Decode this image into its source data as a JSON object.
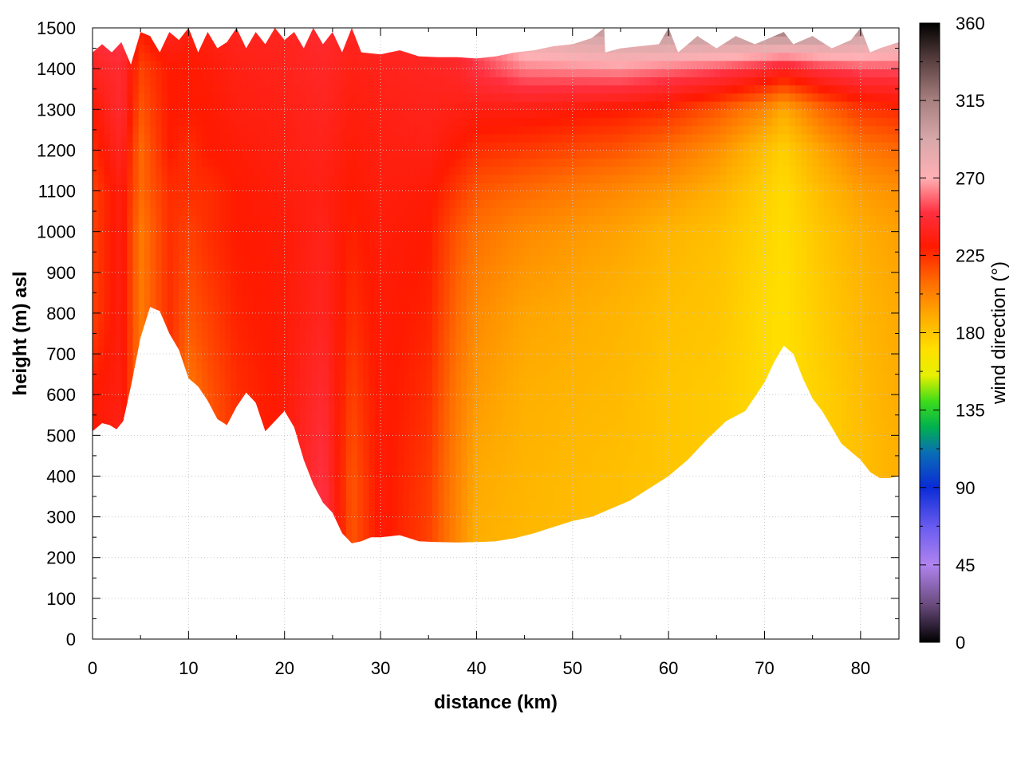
{
  "chart_data": {
    "type": "heatmap",
    "title": "",
    "xlabel": "distance (km)",
    "ylabel": "height (m) asl",
    "colorbar_label": "wind direction (°)",
    "xlim": [
      0,
      84
    ],
    "ylim": [
      0,
      1500
    ],
    "xticks": [
      0,
      10,
      20,
      30,
      40,
      50,
      60,
      70,
      80
    ],
    "yticks": [
      0,
      100,
      200,
      300,
      400,
      500,
      600,
      700,
      800,
      900,
      1000,
      1100,
      1200,
      1300,
      1400,
      1500
    ],
    "colorbar_range": [
      0,
      360
    ],
    "colorbar_ticks": [
      0,
      45,
      90,
      135,
      180,
      225,
      270,
      315,
      360
    ],
    "grid": true,
    "colormap": [
      {
        "value": 0,
        "color": "#000000"
      },
      {
        "value": 22,
        "color": "#6a4b7d"
      },
      {
        "value": 45,
        "color": "#b083ef"
      },
      {
        "value": 67,
        "color": "#6a5cf0"
      },
      {
        "value": 90,
        "color": "#0a2bd6"
      },
      {
        "value": 110,
        "color": "#0a6db6"
      },
      {
        "value": 125,
        "color": "#00b050"
      },
      {
        "value": 140,
        "color": "#3ddc1a"
      },
      {
        "value": 155,
        "color": "#e6f000"
      },
      {
        "value": 170,
        "color": "#ffe000"
      },
      {
        "value": 190,
        "color": "#ffaa00"
      },
      {
        "value": 210,
        "color": "#ff6a00"
      },
      {
        "value": 230,
        "color": "#ff1a00"
      },
      {
        "value": 250,
        "color": "#ff3040"
      },
      {
        "value": 270,
        "color": "#ffb0b4"
      },
      {
        "value": 292,
        "color": "#d8a8aa"
      },
      {
        "value": 315,
        "color": "#a88080"
      },
      {
        "value": 338,
        "color": "#5a4040"
      },
      {
        "value": 360,
        "color": "#000000"
      }
    ],
    "terrain": {
      "x": [
        0,
        1,
        1.8,
        2.5,
        3.2,
        4,
        5,
        6,
        7,
        8,
        9,
        10,
        11,
        12,
        13,
        14,
        15,
        16,
        17,
        18,
        19,
        20,
        21,
        22,
        23,
        24,
        25,
        26,
        27,
        28,
        29,
        30,
        32,
        34,
        36,
        38,
        40,
        42,
        44,
        46,
        48,
        50,
        52,
        54,
        56,
        58,
        60,
        62,
        64,
        66,
        68,
        70,
        71,
        72,
        73,
        74,
        75,
        76,
        77,
        78,
        79,
        80,
        81,
        82,
        83,
        84
      ],
      "height": [
        510,
        530,
        525,
        515,
        535,
        620,
        740,
        815,
        805,
        750,
        710,
        640,
        620,
        585,
        540,
        525,
        570,
        605,
        580,
        510,
        535,
        560,
        520,
        440,
        380,
        335,
        310,
        260,
        235,
        240,
        250,
        250,
        255,
        240,
        238,
        237,
        238,
        240,
        248,
        260,
        275,
        290,
        300,
        320,
        340,
        370,
        400,
        440,
        490,
        535,
        560,
        630,
        680,
        720,
        700,
        640,
        590,
        560,
        520,
        480,
        460,
        440,
        410,
        395,
        395,
        400
      ]
    },
    "field_columns": [
      {
        "x": 0,
        "dir": [
          230,
          230,
          230,
          230,
          220,
          220,
          220,
          225,
          230,
          240,
          250
        ]
      },
      {
        "x": 3,
        "dir": [
          250,
          250,
          240,
          235,
          235,
          235,
          235,
          240,
          245,
          245,
          255
        ]
      },
      {
        "x": 5,
        "dir": [
          210,
          210,
          210,
          205,
          205,
          205,
          210,
          210,
          215,
          220,
          230
        ]
      },
      {
        "x": 8,
        "dir": [
          230,
          225,
          220,
          225,
          225,
          225,
          225,
          230,
          230,
          230,
          240
        ]
      },
      {
        "x": 10,
        "dir": [
          95,
          140,
          175,
          205,
          215,
          220,
          225,
          225,
          230,
          230,
          235
        ]
      },
      {
        "x": 12,
        "dir": [
          160,
          185,
          210,
          215,
          220,
          225,
          225,
          230,
          230,
          232,
          236
        ]
      },
      {
        "x": 15,
        "dir": [
          225,
          225,
          225,
          225,
          228,
          230,
          230,
          232,
          235,
          236,
          240
        ]
      },
      {
        "x": 20,
        "dir": [
          230,
          230,
          232,
          232,
          232,
          232,
          234,
          235,
          236,
          238,
          240
        ]
      },
      {
        "x": 24,
        "dir": [
          260,
          255,
          250,
          245,
          240,
          238,
          236,
          238,
          240,
          242,
          245
        ]
      },
      {
        "x": 27,
        "dir": [
          215,
          215,
          215,
          220,
          225,
          228,
          230,
          232,
          234,
          236,
          240
        ]
      },
      {
        "x": 30,
        "dir": [
          232,
          232,
          232,
          232,
          232,
          233,
          234,
          235,
          236,
          238,
          245
        ]
      },
      {
        "x": 35,
        "dir": [
          220,
          220,
          222,
          225,
          228,
          230,
          232,
          236,
          238,
          240,
          245
        ]
      },
      {
        "x": 38,
        "dir": [
          200,
          200,
          202,
          205,
          210,
          215,
          222,
          230,
          236,
          242,
          250
        ]
      },
      {
        "x": 40,
        "dir": [
          188,
          188,
          190,
          195,
          200,
          208,
          215,
          225,
          235,
          250,
          262
        ]
      },
      {
        "x": 45,
        "dir": [
          185,
          185,
          186,
          188,
          192,
          200,
          210,
          222,
          235,
          262,
          290
        ]
      },
      {
        "x": 55,
        "dir": [
          182,
          182,
          182,
          184,
          186,
          192,
          200,
          215,
          230,
          265,
          305
        ]
      },
      {
        "x": 60,
        "dir": [
          180,
          180,
          180,
          180,
          182,
          186,
          195,
          208,
          225,
          260,
          310
        ]
      },
      {
        "x": 65,
        "dir": [
          178,
          178,
          178,
          178,
          180,
          182,
          188,
          198,
          215,
          255,
          312
        ]
      },
      {
        "x": 70,
        "dir": [
          172,
          172,
          172,
          172,
          172,
          174,
          176,
          182,
          200,
          245,
          318
        ]
      },
      {
        "x": 72,
        "dir": [
          170,
          170,
          170,
          170,
          170,
          171,
          172,
          176,
          190,
          240,
          320
        ]
      },
      {
        "x": 76,
        "dir": [
          176,
          176,
          176,
          176,
          178,
          180,
          184,
          192,
          210,
          250,
          315
        ]
      },
      {
        "x": 80,
        "dir": [
          182,
          182,
          182,
          183,
          185,
          188,
          194,
          205,
          222,
          255,
          305
        ]
      },
      {
        "x": 84,
        "dir": [
          188,
          188,
          188,
          189,
          190,
          193,
          198,
          210,
          226,
          255,
          300
        ]
      }
    ],
    "field_levels": [
      0,
      200,
      400,
      600,
      800,
      1000,
      1100,
      1200,
      1300,
      1400,
      1500
    ],
    "top_boundary": {
      "x": [
        0,
        1,
        2,
        3,
        4,
        5,
        6,
        7,
        8,
        9,
        10,
        11,
        12,
        13,
        14,
        15,
        16,
        17,
        18,
        19,
        20,
        21,
        22,
        23,
        24,
        25,
        26,
        27,
        28,
        30,
        32,
        34,
        36,
        38,
        40,
        42,
        44,
        46,
        48,
        50,
        52,
        53.3,
        53.4,
        55,
        57,
        59,
        60,
        61,
        63,
        65,
        67,
        69,
        71,
        72,
        73,
        75,
        77,
        79,
        80,
        81,
        82,
        84
      ],
      "height": [
        1440,
        1460,
        1440,
        1465,
        1410,
        1490,
        1480,
        1440,
        1490,
        1470,
        1500,
        1440,
        1490,
        1450,
        1465,
        1500,
        1450,
        1490,
        1460,
        1500,
        1470,
        1490,
        1450,
        1500,
        1460,
        1490,
        1440,
        1500,
        1440,
        1435,
        1445,
        1430,
        1428,
        1428,
        1425,
        1430,
        1440,
        1445,
        1455,
        1460,
        1475,
        1500,
        1440,
        1450,
        1455,
        1460,
        1500,
        1440,
        1480,
        1450,
        1480,
        1460,
        1480,
        1490,
        1460,
        1480,
        1450,
        1470,
        1500,
        1440,
        1450,
        1465
      ]
    }
  }
}
